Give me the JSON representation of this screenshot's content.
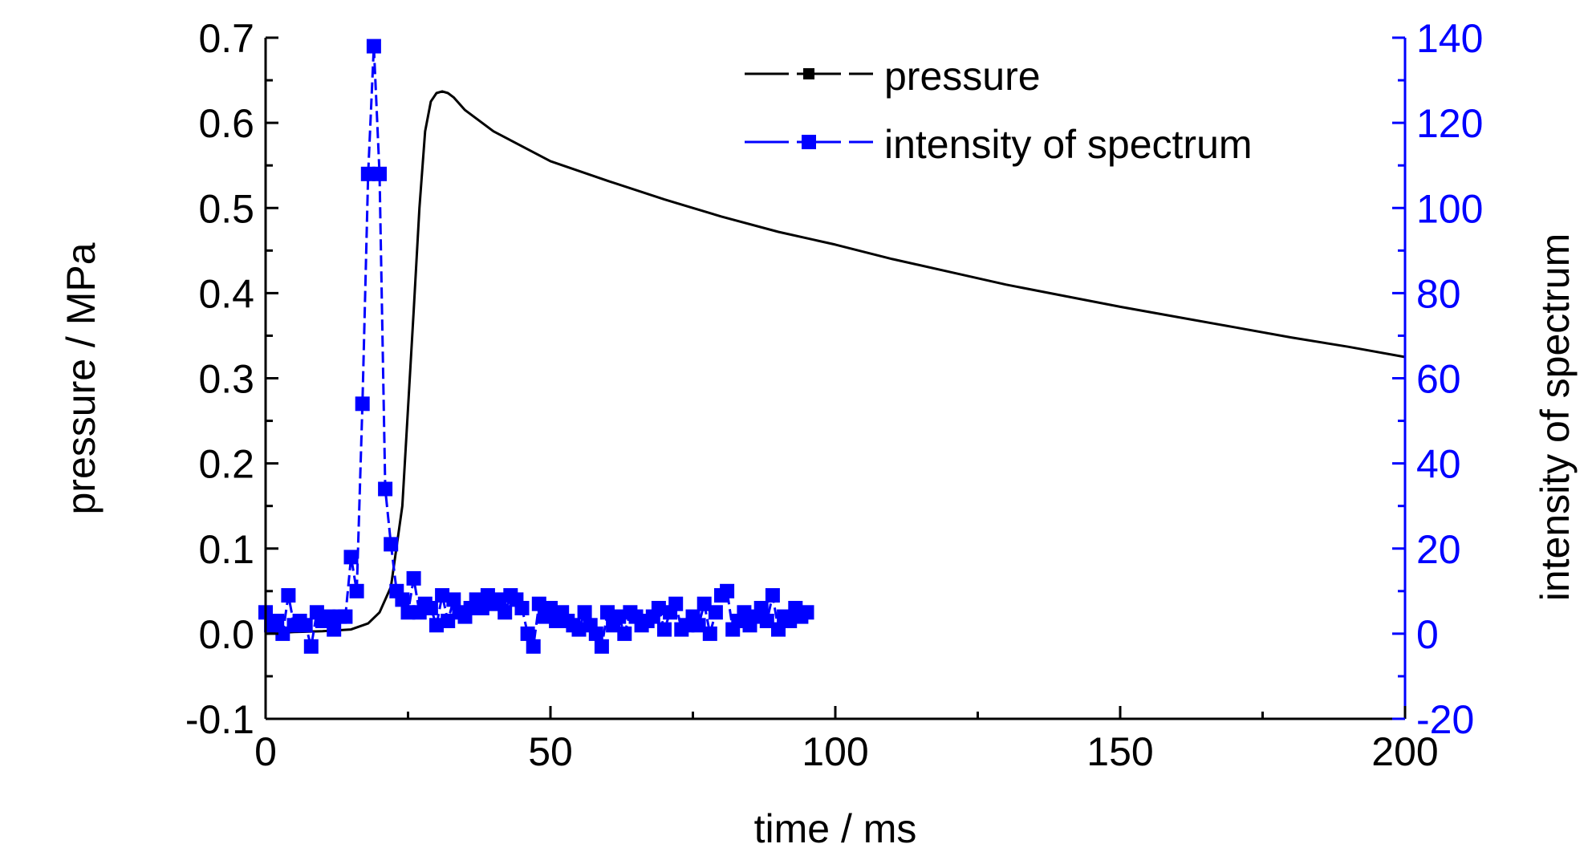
{
  "chart_data": {
    "type": "line",
    "xlabel": "time / ms",
    "ylabel_left": "pressure / MPa",
    "ylabel_right": "intensity of spectrum",
    "xlim": [
      0,
      200
    ],
    "ylim_left": [
      -0.1,
      0.7
    ],
    "ylim_right": [
      -20,
      140
    ],
    "x_ticks": [
      "0",
      "50",
      "100",
      "150",
      "200"
    ],
    "y_left_ticks": [
      "-0.1",
      "0.0",
      "0.1",
      "0.2",
      "0.3",
      "0.4",
      "0.5",
      "0.6",
      "0.7"
    ],
    "y_right_ticks": [
      "-20",
      "0",
      "20",
      "40",
      "60",
      "80",
      "100",
      "120",
      "140"
    ],
    "grid": false,
    "legend_position": "top-center",
    "colors": {
      "pressure": "#000000",
      "intensity": "#0000ff"
    },
    "series": [
      {
        "name": "pressure",
        "axis": "left",
        "style": "line",
        "x": [
          0,
          5,
          10,
          15,
          18,
          20,
          22,
          24,
          26,
          27,
          28,
          29,
          30,
          31,
          32,
          33,
          35,
          40,
          50,
          60,
          70,
          80,
          90,
          100,
          110,
          120,
          130,
          140,
          150,
          160,
          170,
          180,
          190,
          200
        ],
        "y": [
          0.0,
          0.002,
          0.003,
          0.005,
          0.012,
          0.025,
          0.055,
          0.15,
          0.38,
          0.5,
          0.59,
          0.625,
          0.635,
          0.637,
          0.635,
          0.63,
          0.615,
          0.59,
          0.555,
          0.532,
          0.51,
          0.49,
          0.472,
          0.457,
          0.44,
          0.425,
          0.41,
          0.397,
          0.384,
          0.372,
          0.36,
          0.348,
          0.337,
          0.325
        ]
      },
      {
        "name": "intensity of spectrum",
        "axis": "right",
        "style": "line+square-markers",
        "x": [
          0,
          1,
          2,
          3,
          4,
          5,
          6,
          7,
          8,
          9,
          10,
          11,
          12,
          13,
          14,
          15,
          16,
          17,
          18,
          19,
          20,
          21,
          22,
          23,
          24,
          25,
          26,
          27,
          28,
          29,
          30,
          31,
          32,
          33,
          34,
          35,
          36,
          37,
          38,
          39,
          40,
          41,
          42,
          43,
          44,
          45,
          46,
          47,
          48,
          49,
          50,
          51,
          52,
          53,
          54,
          55,
          56,
          57,
          58,
          59,
          60,
          61,
          62,
          63,
          64,
          65,
          66,
          67,
          68,
          69,
          70,
          71,
          72,
          73,
          74,
          75,
          76,
          77,
          78,
          79,
          80,
          81,
          82,
          83,
          84,
          85,
          86,
          87,
          88,
          89,
          90,
          91,
          92,
          93,
          94,
          95
        ],
        "y": [
          5,
          2,
          3,
          0,
          9,
          2,
          3,
          2,
          -3,
          5,
          3,
          4,
          1,
          4,
          4,
          18,
          10,
          54,
          108,
          138,
          108,
          34,
          21,
          10,
          8,
          5,
          13,
          5,
          7,
          6,
          2,
          9,
          3,
          8,
          5,
          4,
          6,
          8,
          6,
          9,
          7,
          8,
          5,
          9,
          8,
          6,
          0,
          -3,
          7,
          4,
          6,
          3,
          5,
          3,
          2,
          1,
          5,
          2,
          0,
          -3,
          5,
          2,
          4,
          0,
          5,
          4,
          2,
          3,
          4,
          6,
          1,
          5,
          7,
          1,
          2,
          4,
          2,
          7,
          0,
          5,
          9,
          10,
          1,
          3,
          5,
          2,
          4,
          6,
          3,
          9,
          1,
          4,
          3,
          6,
          4,
          5
        ]
      }
    ]
  }
}
